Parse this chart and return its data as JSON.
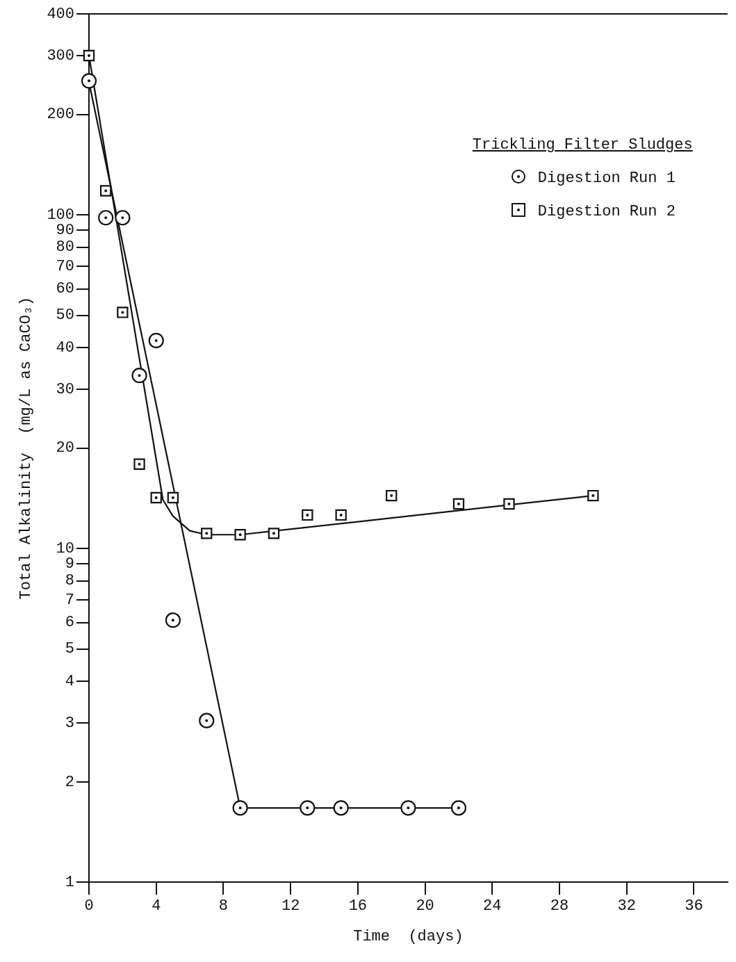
{
  "chart_data": {
    "type": "scatter",
    "xlabel": "Time  (days)",
    "ylabel": "Total Alkalinity  (mg/L as CaCO₃)",
    "legend_title": "Trickling Filter Sludges",
    "legend": "top right",
    "log": "y",
    "grid": false,
    "xlim": [
      0,
      38
    ],
    "xticks": [
      0,
      4,
      8,
      12,
      16,
      20,
      24,
      28,
      32,
      36
    ],
    "ylim": [
      1,
      400
    ],
    "yticks": [
      1,
      2,
      3,
      4,
      5,
      6,
      7,
      8,
      9,
      10,
      20,
      30,
      40,
      50,
      60,
      70,
      80,
      90,
      100,
      200,
      300,
      400
    ],
    "series": [
      {
        "name": "Digestion Run 1",
        "type": "scatter",
        "marker": "circle",
        "color": "#111111",
        "x": [
          0,
          1,
          2,
          3,
          4,
          5,
          7,
          9,
          13,
          15,
          19,
          22
        ],
        "values": [
          252,
          98,
          98,
          33,
          42,
          6.1,
          3.05,
          1.67,
          1.67,
          1.67,
          1.67,
          1.67
        ]
      },
      {
        "name": "Digestion Run 2",
        "type": "scatter",
        "marker": "square",
        "color": "#111111",
        "x": [
          0,
          1,
          2,
          3,
          4,
          5,
          7,
          9,
          11,
          13,
          15,
          18,
          22,
          25,
          30
        ],
        "values": [
          300,
          118,
          51,
          17.9,
          14.2,
          14.2,
          11.1,
          11,
          11.1,
          12.6,
          12.6,
          14.4,
          13.6,
          13.6,
          14.4
        ]
      },
      {
        "type": "line",
        "marker": "none",
        "color": "#111111",
        "x": [
          0,
          9,
          22
        ],
        "values": [
          250,
          1.67,
          1.67
        ]
      },
      {
        "type": "line",
        "marker": "none",
        "color": "#111111",
        "x": [
          0,
          4.4,
          5,
          6,
          7,
          9,
          30
        ],
        "values": [
          300,
          14,
          12.5,
          11.3,
          11,
          11,
          14.4
        ]
      }
    ]
  }
}
